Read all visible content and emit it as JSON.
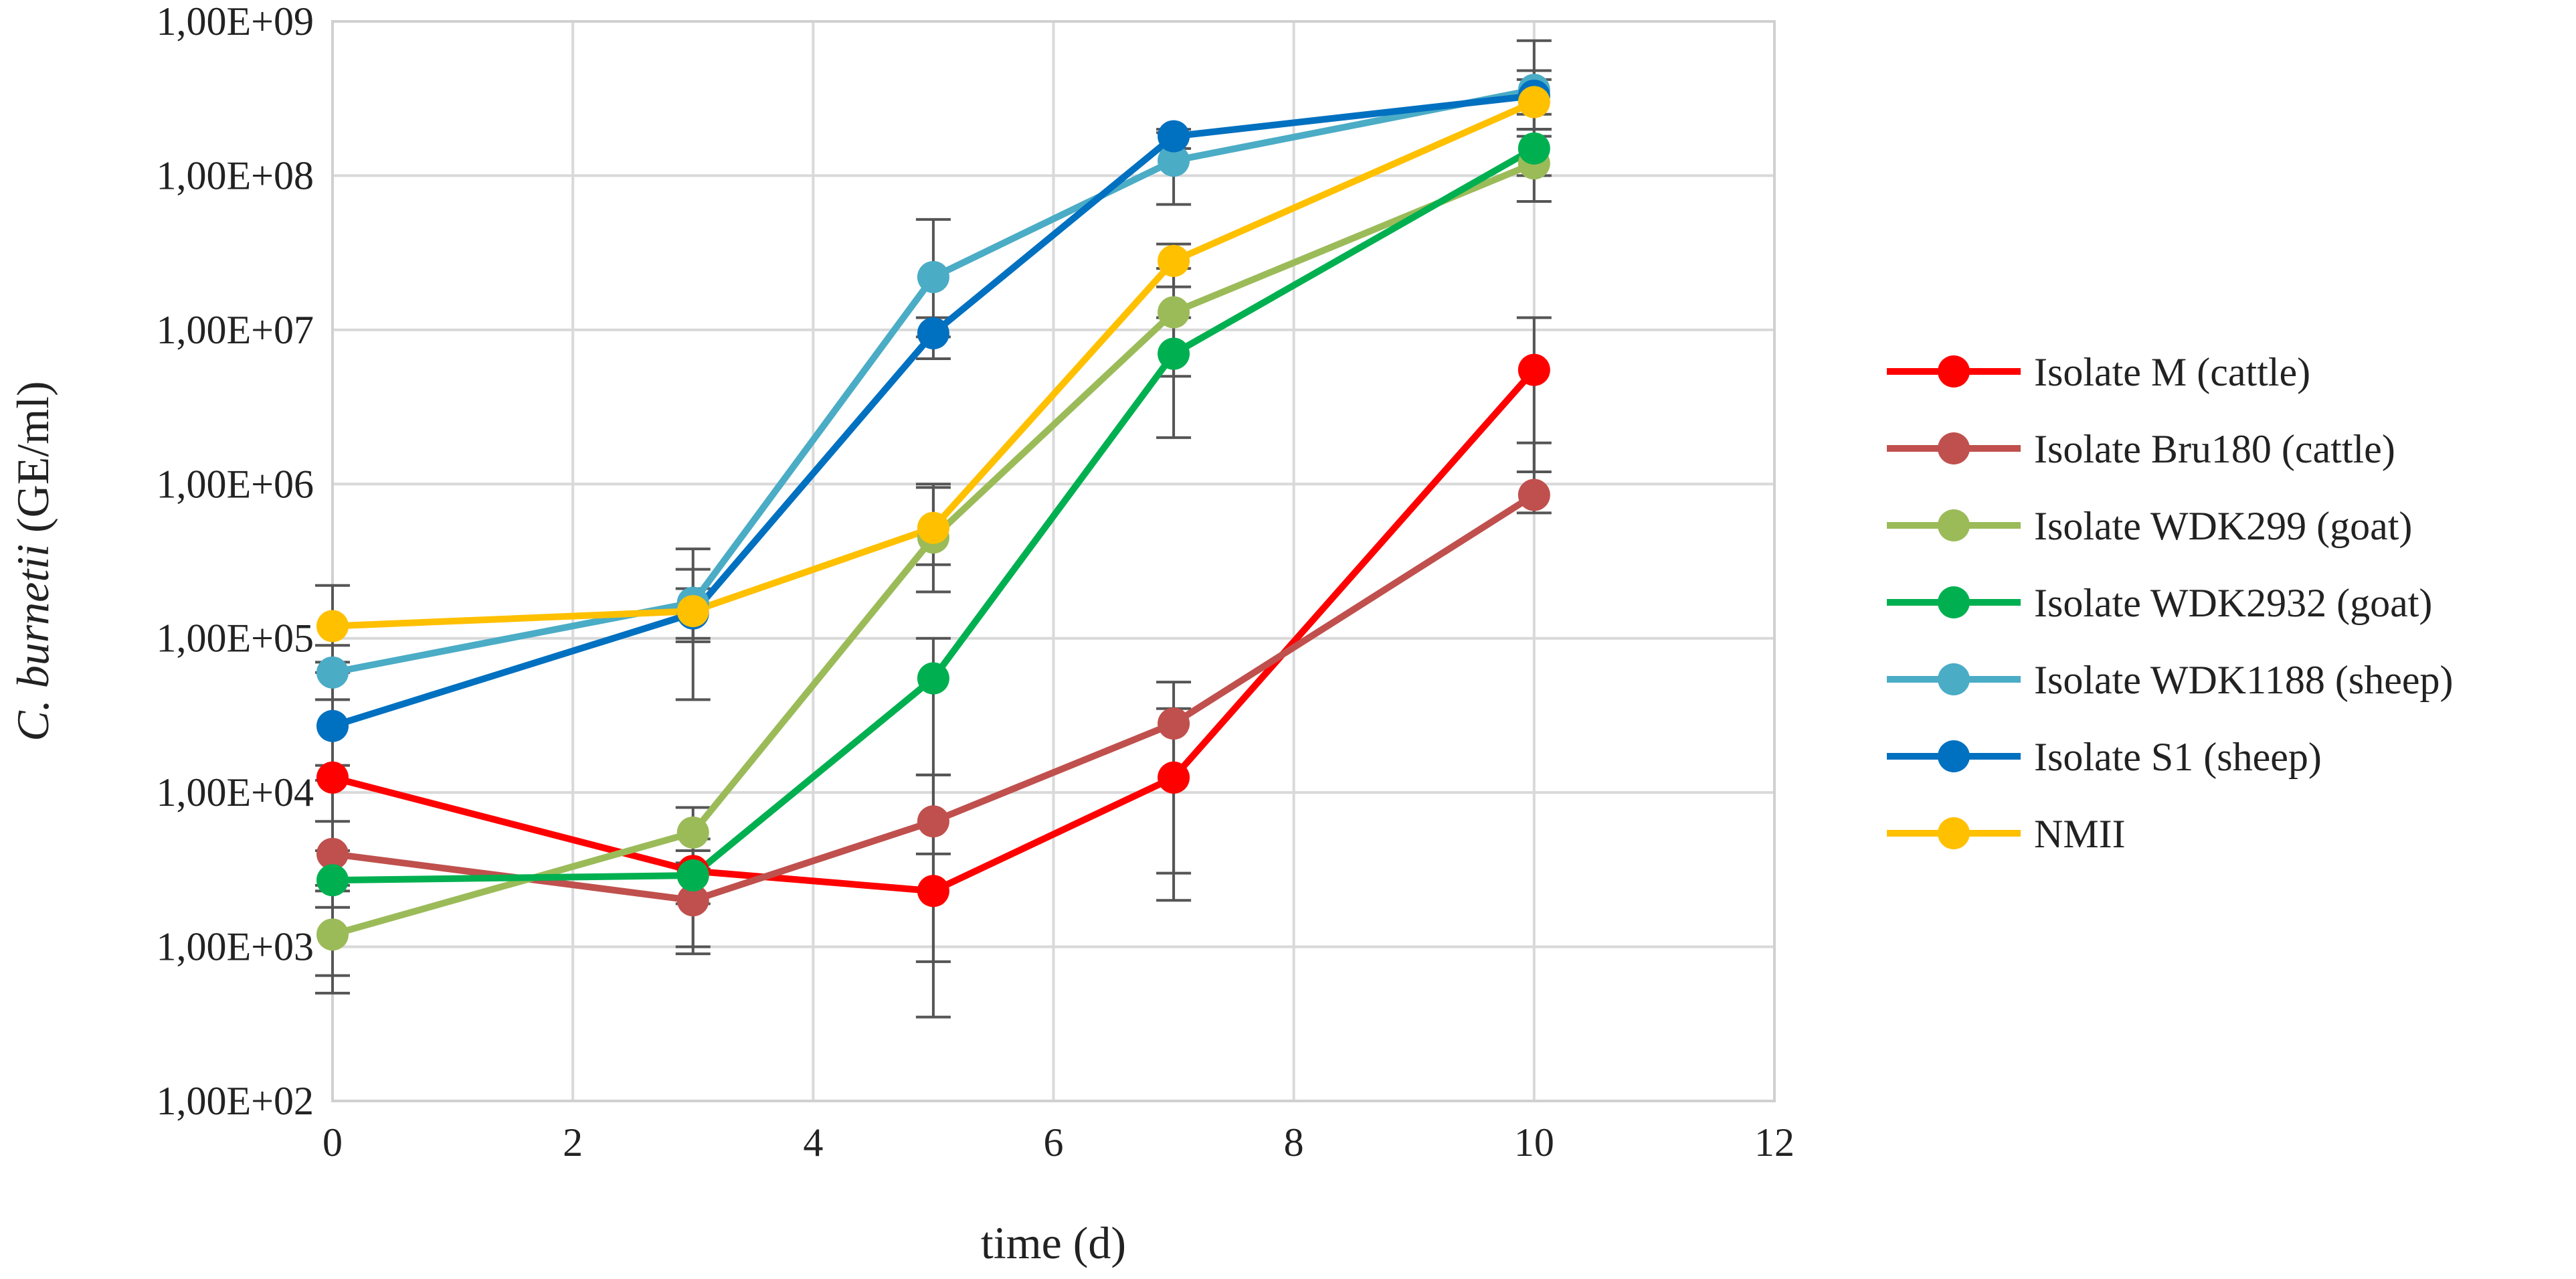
{
  "chart_data": {
    "type": "line",
    "title": "",
    "xlabel": "time (d)",
    "ylabel_italic": "C. burnetii",
    "ylabel_rest": " (GE/ml)",
    "xlim": [
      0,
      12
    ],
    "ylim": [
      100,
      1000000000
    ],
    "yscale": "log",
    "x_ticks": [
      "0",
      "2",
      "4",
      "6",
      "8",
      "10",
      "12"
    ],
    "y_ticks": [
      "1,00E+02",
      "1,00E+03",
      "1,00E+04",
      "1,00E+05",
      "1,00E+06",
      "1,00E+07",
      "1,00E+08",
      "1,00E+09"
    ],
    "grid": true,
    "legend_position": "right",
    "x": [
      0,
      3,
      5,
      7,
      10
    ],
    "series": [
      {
        "name": "Isolate M (cattle)",
        "color": "#ff0000",
        "values": [
          12500,
          3100,
          2300,
          12500,
          5500000
        ],
        "err_low": [
          500,
          1000,
          350,
          3000,
          1200000
        ],
        "err_high": [
          12000,
          5000,
          13000,
          35000,
          12000000
        ]
      },
      {
        "name": "Isolate Bru180 (cattle)",
        "color": "#c0504d",
        "values": [
          4000,
          2000,
          6500,
          28000,
          850000
        ],
        "err_low": [
          2500,
          900,
          800,
          2000,
          650000
        ],
        "err_high": [
          6500,
          3200,
          13000,
          52000,
          1850000
        ]
      },
      {
        "name": "Isolate WDK299 (goat)",
        "color": "#9bbb59",
        "values": [
          1200,
          5500,
          450000,
          13000000,
          120000000
        ],
        "err_low": [
          650,
          3500,
          200000,
          5000000,
          68000000
        ],
        "err_high": [
          2300,
          8000,
          950000,
          25000000,
          180000000
        ]
      },
      {
        "name": "Isolate WDK2932 (goat)",
        "color": "#00b050",
        "values": [
          2700,
          2900,
          55000,
          7000000,
          150000000
        ],
        "err_low": [
          1800,
          1900,
          4000,
          2000000,
          100000000
        ],
        "err_high": [
          4200,
          4200,
          100000,
          12000000,
          200000000
        ]
      },
      {
        "name": "Isolate WDK1188 (sheep)",
        "color": "#4bacc6",
        "values": [
          60000,
          170000,
          22000000,
          125000000,
          360000000
        ],
        "err_low": [
          40000,
          100000,
          9000000,
          65000000,
          200000000
        ],
        "err_high": [
          90000,
          280000,
          52000000,
          200000000,
          480000000
        ]
      },
      {
        "name": "Isolate S1 (sheep)",
        "color": "#0070c0",
        "values": [
          27000,
          145000,
          9500000,
          180000000,
          330000000
        ],
        "err_low": [
          15000,
          95000,
          6500000,
          150000000,
          250000000
        ],
        "err_high": [
          60000,
          210000,
          12000000,
          190000000,
          420000000
        ]
      },
      {
        "name": "NMII",
        "color": "#ffc000",
        "values": [
          120000,
          150000,
          520000,
          28000000,
          300000000
        ],
        "err_low": [
          70000,
          40000,
          300000,
          19000000,
          200000000
        ],
        "err_high": [
          220000,
          380000,
          1000000,
          36000000,
          750000000
        ]
      }
    ]
  }
}
